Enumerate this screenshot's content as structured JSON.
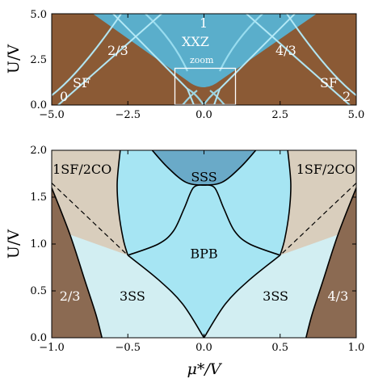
{
  "chart_data": [
    {
      "type": "heatmap",
      "panel": "top",
      "xlim": [
        -5.0,
        5.0
      ],
      "ylim": [
        0.0,
        5.0
      ],
      "xticks": [
        "−5.0",
        "−2.5",
        "0.0",
        "2.5",
        "5.0"
      ],
      "yticks": [
        "0.0",
        "2.5",
        "5.0"
      ],
      "ylabel": "U/V",
      "regions": [
        {
          "label": "0",
          "x": -4.6,
          "y": 0.4
        },
        {
          "label": "SF",
          "x": -3.8,
          "y": 1.2
        },
        {
          "label": "2/3",
          "x": -2.0,
          "y": 3.2
        },
        {
          "label": "1",
          "x": 0.0,
          "y": 4.6
        },
        {
          "label": "XXZ",
          "x": 0.0,
          "y": 3.6
        },
        {
          "label": "zoom",
          "x": 0.0,
          "y": 2.6
        },
        {
          "label": "4/3",
          "x": 2.0,
          "y": 3.2
        },
        {
          "label": "SF",
          "x": 3.8,
          "y": 1.2
        },
        {
          "label": "2",
          "x": 4.6,
          "y": 0.4
        }
      ],
      "zoom_box": {
        "x": [
          -1.0,
          1.0
        ],
        "y": [
          0.0,
          2.0
        ]
      },
      "colors": {
        "background": "#8b5a35",
        "lobe_one": "#54a8c8",
        "boundary": "#8fd8ee"
      }
    },
    {
      "type": "area",
      "panel": "bottom",
      "xlim": [
        -1.0,
        1.0
      ],
      "ylim": [
        0.0,
        2.0
      ],
      "xticks": [
        "−1.0",
        "−0.5",
        "0.0",
        "0.5",
        "1.0"
      ],
      "yticks": [
        "0.0",
        "0.5",
        "1.0",
        "1.5",
        "2.0"
      ],
      "xlabel": "μ*/V",
      "ylabel": "U/V",
      "regions": [
        {
          "label": "1SF/2CO",
          "x": -0.8,
          "y": 1.8
        },
        {
          "label": "1SF/2CO",
          "x": 0.8,
          "y": 1.8
        },
        {
          "label": "SSS",
          "x": 0.0,
          "y": 1.72
        },
        {
          "label": "BPB",
          "x": 0.0,
          "y": 0.9
        },
        {
          "label": "3SS",
          "x": -0.47,
          "y": 0.45
        },
        {
          "label": "3SS",
          "x": 0.47,
          "y": 0.45
        },
        {
          "label": "2/3",
          "x": -0.88,
          "y": 0.45
        },
        {
          "label": "4/3",
          "x": 0.88,
          "y": 0.45
        }
      ],
      "boundaries": {
        "mott_left": [
          [
            -1.0,
            1.6
          ],
          [
            -0.88,
            1.1
          ],
          [
            -0.78,
            0.6
          ],
          [
            -0.71,
            0.25
          ],
          [
            -0.67,
            0.0
          ]
        ],
        "outer_left": [
          [
            -0.55,
            2.0
          ],
          [
            -0.57,
            1.65
          ],
          [
            -0.56,
            1.35
          ],
          [
            -0.53,
            1.05
          ],
          [
            -0.5,
            0.88
          ]
        ],
        "dashed_left": [
          [
            -1.0,
            1.65
          ],
          [
            -0.5,
            0.88
          ]
        ],
        "lower_left": [
          [
            -0.5,
            0.88
          ],
          [
            -0.3,
            0.62
          ],
          [
            -0.14,
            0.36
          ],
          [
            0.0,
            0.0
          ]
        ],
        "bpb_left": [
          [
            -0.5,
            0.88
          ],
          [
            -0.3,
            1.0
          ],
          [
            -0.2,
            1.14
          ],
          [
            -0.13,
            1.38
          ],
          [
            -0.07,
            1.6
          ],
          [
            0.0,
            1.63
          ]
        ],
        "sss_left": [
          [
            -0.34,
            2.0
          ],
          [
            -0.24,
            1.82
          ],
          [
            -0.12,
            1.66
          ],
          [
            0.0,
            1.63
          ]
        ],
        "mott_right": [
          [
            1.0,
            1.6
          ],
          [
            0.88,
            1.1
          ],
          [
            0.78,
            0.6
          ],
          [
            0.71,
            0.25
          ],
          [
            0.67,
            0.0
          ]
        ],
        "outer_right": [
          [
            0.55,
            2.0
          ],
          [
            0.57,
            1.65
          ],
          [
            0.56,
            1.35
          ],
          [
            0.53,
            1.05
          ],
          [
            0.5,
            0.88
          ]
        ],
        "dashed_right": [
          [
            1.0,
            1.65
          ],
          [
            0.5,
            0.88
          ]
        ],
        "lower_right": [
          [
            0.5,
            0.88
          ],
          [
            0.3,
            0.62
          ],
          [
            0.14,
            0.36
          ],
          [
            0.0,
            0.0
          ]
        ],
        "bpb_right": [
          [
            0.5,
            0.88
          ],
          [
            0.3,
            1.0
          ],
          [
            0.2,
            1.14
          ],
          [
            0.13,
            1.38
          ],
          [
            0.07,
            1.6
          ],
          [
            0.0,
            1.63
          ]
        ],
        "sss_right": [
          [
            0.34,
            2.0
          ],
          [
            0.24,
            1.82
          ],
          [
            0.12,
            1.66
          ],
          [
            0.0,
            1.63
          ]
        ]
      },
      "colors": {
        "mott": "#8b6a52",
        "cofluid": "#d9cebd",
        "three_ss": "#d2eef2",
        "bpb": "#a6e5f3",
        "sss": "#6aaac8"
      }
    }
  ]
}
